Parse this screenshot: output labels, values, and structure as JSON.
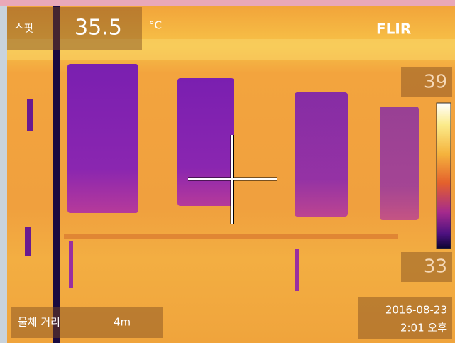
{
  "spot": {
    "label": "스팟",
    "value": "35.5",
    "unit": "°C"
  },
  "brand": "FLIR",
  "scale": {
    "max": "39",
    "min": "33"
  },
  "distance": {
    "label": "물체 거리",
    "value": "4m"
  },
  "timestamp": {
    "date": "2016-08-23",
    "time": "2:01 오후"
  }
}
